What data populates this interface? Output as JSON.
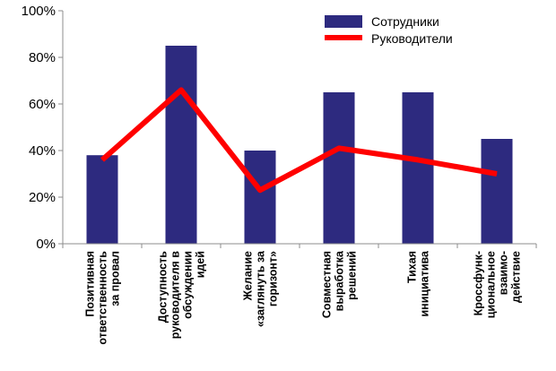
{
  "chart_data": {
    "type": "bar",
    "y_tick_labels": [
      "0%",
      "20%",
      "40%",
      "60%",
      "80%",
      "100%"
    ],
    "ylim": [
      0,
      100
    ],
    "grid": false,
    "legend_position": "top-right",
    "categories": [
      [
        "Позитивная",
        "ответственность",
        "за провал"
      ],
      [
        "Доступность",
        "руководителя в",
        "обсуждении",
        "идей"
      ],
      [
        "Желание",
        "«заглянуть за",
        "горизонт»"
      ],
      [
        "Совместная",
        "выработка",
        "решений"
      ],
      [
        "Тихая",
        "инициатива"
      ],
      [
        "Кроссфунк-",
        "циональное",
        "взаимо-",
        "действие"
      ]
    ],
    "series": [
      {
        "name": "Сотрудники",
        "type": "bar",
        "color": "#2d2a7f",
        "values": [
          38,
          85,
          40,
          65,
          65,
          45
        ]
      },
      {
        "name": "Руководители",
        "type": "line",
        "color": "#ff0000",
        "values": [
          36,
          66,
          23,
          41,
          36,
          30
        ]
      }
    ]
  }
}
